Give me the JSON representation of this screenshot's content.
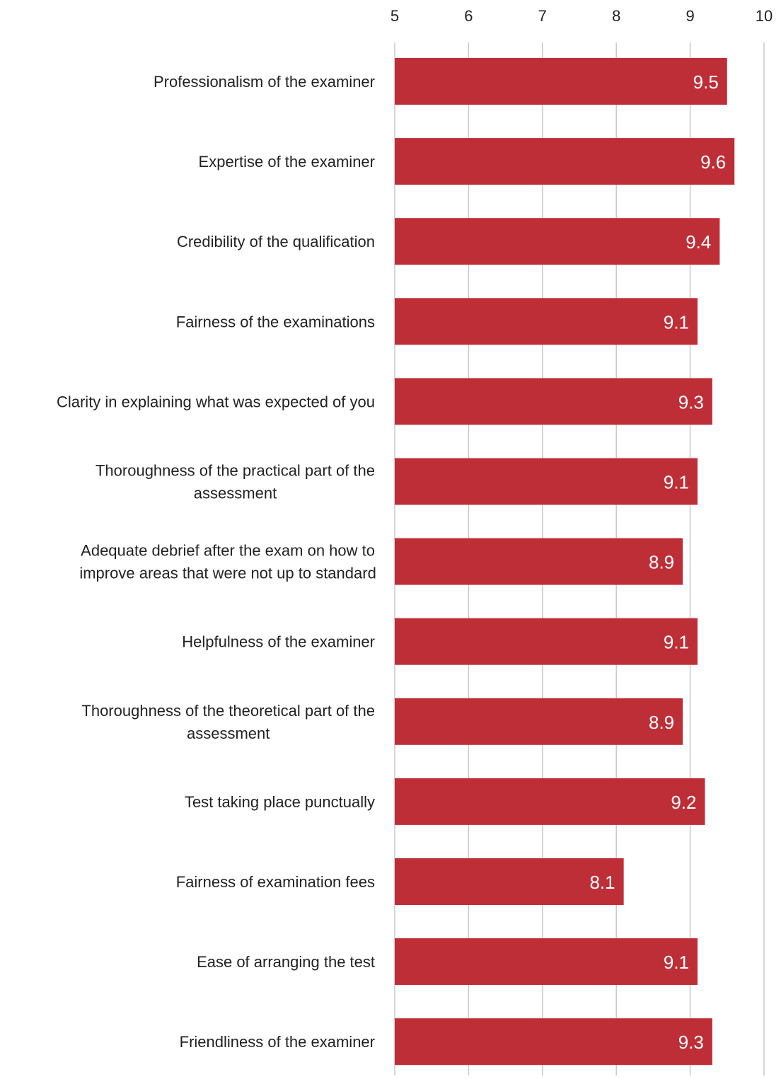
{
  "chart_data": {
    "type": "bar",
    "orientation": "horizontal",
    "title": "",
    "xlabel": "",
    "ylabel": "",
    "xlim": [
      5,
      10
    ],
    "x_ticks": [
      "5",
      "6",
      "7",
      "8",
      "9",
      "10"
    ],
    "axis_position": "top",
    "grid": true,
    "bar_color": "#be2e37",
    "categories": [
      [
        "Professionalism of the examiner"
      ],
      [
        "Expertise of the examiner"
      ],
      [
        "Credibility of the qualification"
      ],
      [
        "Fairness of the examinations"
      ],
      [
        "Clarity in explaining what was expected of you"
      ],
      [
        "Thoroughness of the practical part of the",
        "assessment"
      ],
      [
        "Adequate debrief after the exam on how to",
        "improve areas that were not up to standard"
      ],
      [
        "Helpfulness of the examiner"
      ],
      [
        "Thoroughness of the theoretical part of the",
        "assessment"
      ],
      [
        "Test taking place punctually"
      ],
      [
        "Fairness of examination fees"
      ],
      [
        "Ease of arranging the test"
      ],
      [
        "Friendliness of the examiner"
      ]
    ],
    "values": [
      9.5,
      9.6,
      9.4,
      9.1,
      9.3,
      9.1,
      8.9,
      9.1,
      8.9,
      9.2,
      8.1,
      9.1,
      9.3
    ],
    "data_labels": [
      "9.5",
      "9.6",
      "9.4",
      "9.1",
      "9.3",
      "9.1",
      "8.9",
      "9.1",
      "8.9",
      "9.2",
      "8.1",
      "9.1",
      "9.3"
    ]
  }
}
